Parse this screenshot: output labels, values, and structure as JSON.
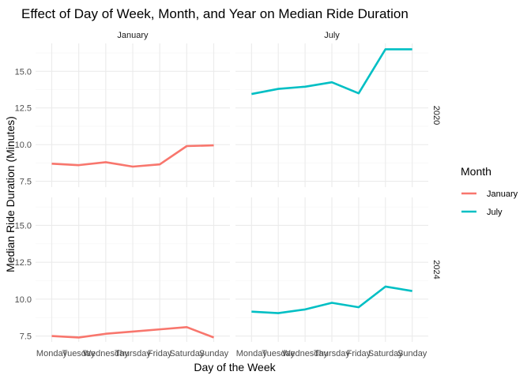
{
  "chart_data": {
    "type": "line",
    "title": "Effect of Day of Week, Month, and Year on Median Ride Duration",
    "xlabel": "Day of the Week",
    "ylabel": "Median Ride Duration (Minutes)",
    "categories": [
      "Monday",
      "Tuesday",
      "Wednesday",
      "Thursday",
      "Friday",
      "Saturday",
      "Sunday"
    ],
    "yticks": [
      "7.5",
      "10.0",
      "12.5",
      "15.0"
    ],
    "ytick_values": [
      7.5,
      10.0,
      12.5,
      15.0
    ],
    "ylim": [
      7.1,
      16.9
    ],
    "grid": true,
    "legend": {
      "title": "Month",
      "position": "right",
      "entries": [
        {
          "name": "January",
          "color": "#f8766d"
        },
        {
          "name": "July",
          "color": "#00bfc4"
        }
      ]
    },
    "facet_columns": [
      "January",
      "July"
    ],
    "facet_rows": [
      "2020",
      "2024"
    ],
    "panels": [
      {
        "month": "January",
        "year": "2020",
        "color": "#f8766d",
        "values": [
          8.7,
          8.6,
          8.8,
          8.5,
          8.65,
          9.9,
          9.95
        ]
      },
      {
        "month": "July",
        "year": "2020",
        "color": "#00bfc4",
        "values": [
          13.45,
          13.8,
          13.95,
          14.25,
          13.5,
          16.5,
          16.5
        ]
      },
      {
        "month": "January",
        "year": "2024",
        "color": "#f8766d",
        "values": [
          7.5,
          7.4,
          7.65,
          7.8,
          7.95,
          8.1,
          7.4
        ]
      },
      {
        "month": "July",
        "year": "2024",
        "color": "#00bfc4",
        "values": [
          9.15,
          9.05,
          9.3,
          9.75,
          9.45,
          10.85,
          10.55
        ]
      }
    ]
  }
}
